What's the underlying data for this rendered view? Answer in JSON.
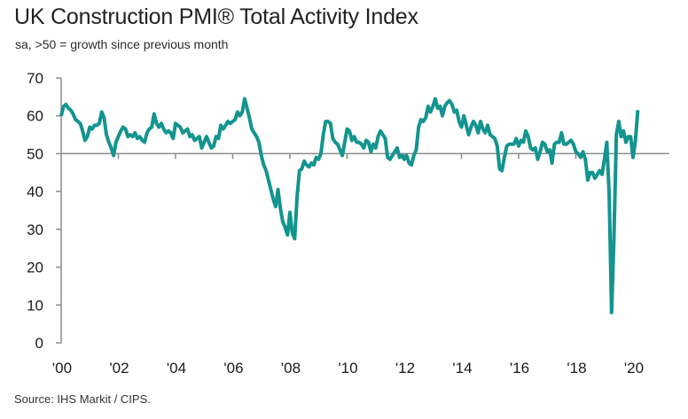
{
  "header": {
    "title": "UK Construction PMI® Total Activity Index",
    "subtitle": "sa, >50 = growth since previous month"
  },
  "footer": {
    "source": "Source: IHS Markit / CIPS."
  },
  "colors": {
    "line": "#13948f",
    "axis": "#8c8c8c",
    "reference_line": "#8c8c8c"
  },
  "chart_data": {
    "type": "line",
    "title": "UK Construction PMI® Total Activity Index",
    "subtitle": "sa, >50 = growth since previous month",
    "xlabel": "",
    "ylabel": "",
    "ylim": [
      0,
      70
    ],
    "xlim": [
      2000,
      2021.3
    ],
    "yticks": [
      0,
      10,
      20,
      30,
      40,
      50,
      60,
      70
    ],
    "ytick_labels": [
      "0",
      "10",
      "20",
      "30",
      "40",
      "50",
      "60",
      "70"
    ],
    "xticks": [
      2000,
      2002,
      2004,
      2006,
      2008,
      2010,
      2012,
      2014,
      2016,
      2018,
      2020
    ],
    "xtick_labels": [
      "'00",
      "'02",
      "'04",
      "'06",
      "'08",
      "'10",
      "'12",
      "'14",
      "'16",
      "'18",
      "'20"
    ],
    "reference_line": 50,
    "grid": false,
    "legend": "none",
    "annotations": [],
    "series": [
      {
        "name": "UK Construction PMI Total Activity Index",
        "start": 2000.0,
        "frequency": "monthly",
        "values": [
          60.0,
          62.5,
          63.0,
          62.0,
          61.5,
          60.5,
          59.0,
          58.5,
          58.0,
          56.0,
          53.5,
          54.5,
          57.0,
          56.5,
          57.5,
          57.5,
          58.0,
          61.0,
          59.5,
          55.0,
          53.0,
          51.5,
          49.5,
          53.0,
          54.5,
          56.0,
          57.0,
          56.5,
          54.5,
          55.0,
          54.5,
          55.5,
          54.0,
          54.5,
          53.5,
          53.0,
          55.5,
          56.5,
          57.0,
          60.5,
          58.0,
          57.0,
          58.0,
          56.5,
          55.5,
          56.0,
          55.5,
          54.0,
          58.0,
          57.5,
          57.0,
          55.5,
          56.0,
          56.5,
          54.5,
          55.0,
          53.5,
          54.0,
          54.5,
          51.5,
          53.0,
          54.5,
          53.0,
          51.5,
          52.0,
          54.5,
          54.0,
          57.5,
          56.5,
          57.5,
          58.5,
          58.0,
          58.5,
          59.0,
          61.0,
          60.0,
          61.0,
          64.5,
          62.0,
          59.5,
          56.5,
          55.5,
          54.5,
          53.0,
          49.5,
          47.0,
          45.5,
          43.0,
          40.5,
          38.0,
          36.0,
          40.5,
          35.5,
          32.0,
          30.5,
          28.5,
          34.5,
          29.0,
          27.5,
          38.5,
          45.5,
          46.0,
          48.0,
          47.0,
          46.5,
          47.5,
          47.0,
          49.0,
          48.5,
          50.0,
          55.0,
          58.5,
          58.5,
          58.0,
          54.0,
          53.0,
          52.5,
          51.0,
          49.5,
          53.0,
          56.5,
          56.0,
          53.5,
          54.5,
          53.0,
          53.0,
          52.5,
          51.5,
          53.5,
          53.0,
          50.5,
          52.5,
          51.5,
          54.5,
          56.0,
          55.0,
          54.0,
          49.0,
          48.5,
          49.5,
          50.5,
          51.5,
          49.0,
          49.5,
          48.5,
          49.5,
          47.5,
          47.0,
          49.5,
          51.0,
          57.0,
          59.0,
          58.5,
          59.5,
          62.5,
          61.0,
          62.5,
          64.5,
          62.0,
          62.5,
          60.0,
          62.5,
          63.5,
          64.0,
          63.0,
          61.0,
          61.5,
          58.5,
          57.0,
          60.0,
          57.5,
          55.0,
          57.0,
          58.5,
          57.5,
          55.5,
          58.5,
          56.5,
          55.5,
          57.5,
          55.0,
          54.5,
          54.0,
          52.0,
          46.0,
          45.5,
          49.0,
          52.0,
          52.5,
          52.5,
          52.5,
          54.0,
          52.0,
          53.5,
          53.0,
          56.0,
          54.5,
          51.5,
          51.0,
          51.5,
          48.5,
          50.5,
          53.0,
          52.5,
          50.5,
          51.0,
          47.5,
          52.5,
          53.0,
          53.0,
          55.5,
          52.5,
          52.5,
          53.0,
          53.5,
          52.5,
          50.5,
          50.0,
          49.0,
          50.5,
          48.5,
          43.0,
          45.0,
          45.0,
          43.5,
          44.5,
          45.5,
          44.5,
          48.5,
          53.0,
          39.0,
          8.0,
          28.0,
          55.0,
          58.5,
          54.5,
          56.0,
          53.0,
          54.5,
          54.5,
          49.0,
          53.5,
          61.5
        ]
      }
    ]
  }
}
